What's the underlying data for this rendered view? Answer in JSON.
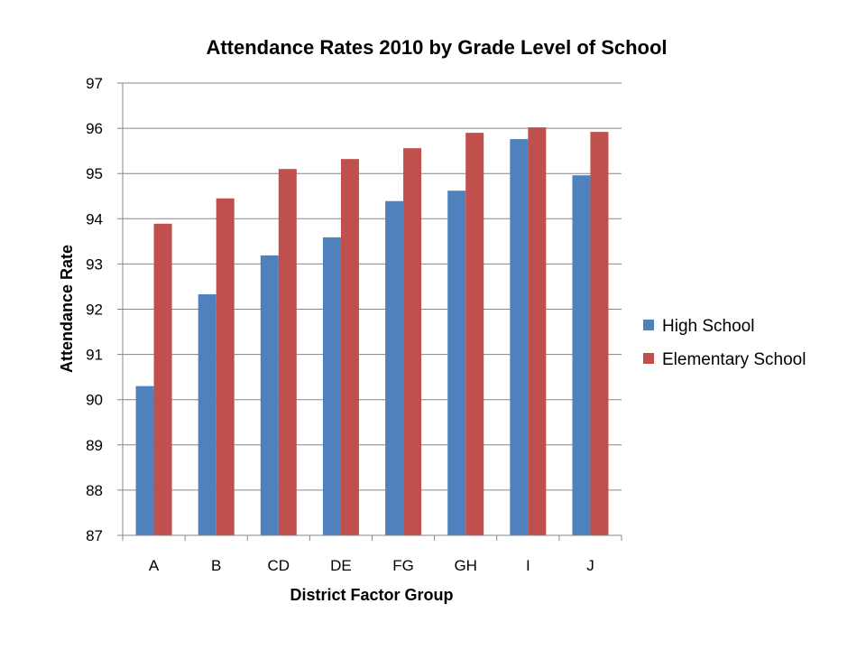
{
  "chart_data": {
    "type": "bar",
    "title": "Attendance Rates 2010 by Grade Level of School",
    "xlabel": "District Factor Group",
    "ylabel": "Attendance Rate",
    "categories": [
      "A",
      "B",
      "CD",
      "DE",
      "FG",
      "GH",
      "I",
      "J"
    ],
    "series": [
      {
        "name": "High School",
        "color": "#4F81BD",
        "values": [
          90.3,
          92.33,
          93.19,
          93.59,
          94.39,
          94.62,
          95.76,
          94.96
        ]
      },
      {
        "name": "Elementary School",
        "color": "#C0504D",
        "values": [
          93.89,
          94.45,
          95.1,
          95.32,
          95.56,
          95.9,
          96.02,
          95.92
        ]
      }
    ],
    "ylim": [
      87,
      97
    ],
    "yticks": [
      87,
      88,
      89,
      90,
      91,
      92,
      93,
      94,
      95,
      96,
      97
    ],
    "grid": true,
    "legend_position": "right"
  }
}
